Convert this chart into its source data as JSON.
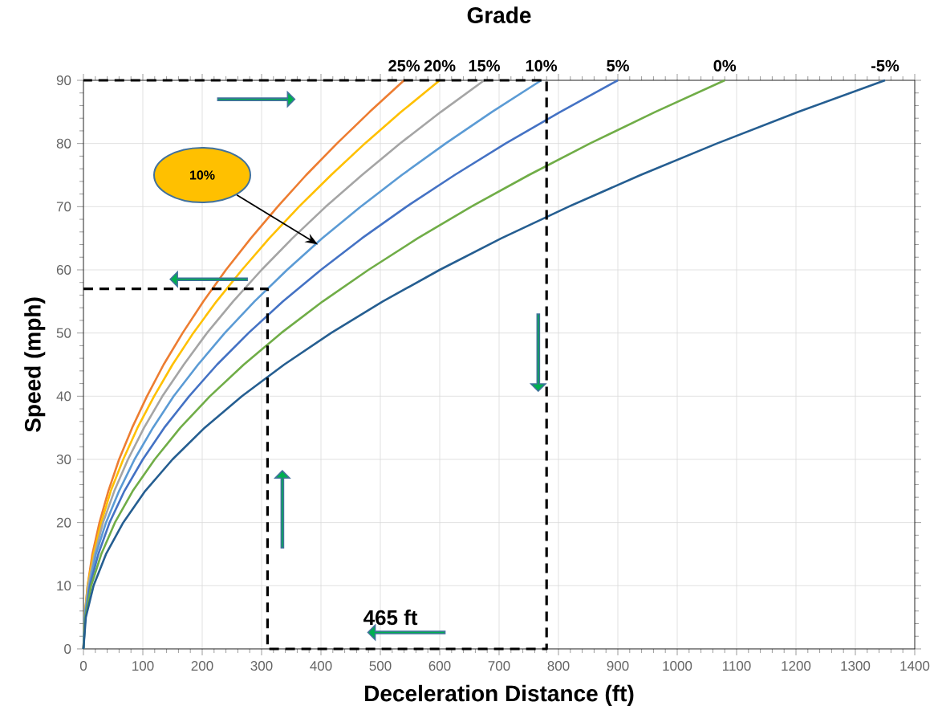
{
  "chart_data": {
    "type": "line",
    "title": "Grade",
    "xlabel": "Deceleration Distance (ft)",
    "ylabel": "Speed (mph)",
    "xlim": [
      0,
      1400
    ],
    "ylim": [
      0,
      90
    ],
    "xticks": [
      0,
      100,
      200,
      300,
      400,
      500,
      600,
      700,
      800,
      900,
      1000,
      1100,
      1200,
      1300,
      1400
    ],
    "yticks": [
      0,
      10,
      20,
      30,
      40,
      50,
      60,
      70,
      80,
      90
    ],
    "grid": true,
    "legend": false,
    "series": [
      {
        "name": "25%",
        "color": "#ed7d31",
        "x": [
          0,
          2,
          7,
          15,
          27,
          42,
          60,
          82,
          107,
          135,
          167,
          202,
          240,
          282,
          327,
          375,
          427,
          482,
          540
        ],
        "values": [
          0,
          5,
          10,
          15,
          20,
          25,
          30,
          35,
          40,
          45,
          50,
          55,
          60,
          65,
          70,
          75,
          80,
          85,
          90
        ]
      },
      {
        "name": "20%",
        "color": "#ffc000",
        "x": [
          0,
          2,
          7,
          17,
          30,
          46,
          67,
          91,
          119,
          150,
          185,
          224,
          267,
          313,
          363,
          417,
          474,
          535,
          600
        ],
        "values": [
          0,
          5,
          10,
          15,
          20,
          25,
          30,
          35,
          40,
          45,
          50,
          55,
          60,
          65,
          70,
          75,
          80,
          85,
          90
        ]
      },
      {
        "name": "15%",
        "color": "#a5a5a5",
        "x": [
          0,
          2,
          8,
          19,
          33,
          52,
          75,
          102,
          133,
          169,
          208,
          252,
          300,
          352,
          408,
          469,
          533,
          602,
          675
        ],
        "values": [
          0,
          5,
          10,
          15,
          20,
          25,
          30,
          35,
          40,
          45,
          50,
          55,
          60,
          65,
          70,
          75,
          80,
          85,
          90
        ]
      },
      {
        "name": "10%",
        "color": "#5b9bd5",
        "x": [
          0,
          2,
          10,
          21,
          38,
          60,
          86,
          117,
          152,
          193,
          238,
          288,
          343,
          402,
          467,
          536,
          610,
          688,
          771
        ],
        "values": [
          0,
          5,
          10,
          15,
          20,
          25,
          30,
          35,
          40,
          45,
          50,
          55,
          60,
          65,
          70,
          75,
          80,
          85,
          90
        ]
      },
      {
        "name": "5%",
        "color": "#4472c4",
        "x": [
          0,
          3,
          11,
          25,
          44,
          69,
          100,
          136,
          178,
          225,
          278,
          336,
          400,
          469,
          544,
          625,
          711,
          803,
          900
        ],
        "values": [
          0,
          5,
          10,
          15,
          20,
          25,
          30,
          35,
          40,
          45,
          50,
          55,
          60,
          65,
          70,
          75,
          80,
          85,
          90
        ]
      },
      {
        "name": "0%",
        "color": "#70ad47",
        "x": [
          0,
          3,
          13,
          30,
          53,
          83,
          120,
          163,
          213,
          270,
          333,
          403,
          480,
          563,
          653,
          750,
          853,
          963,
          1080
        ],
        "values": [
          0,
          5,
          10,
          15,
          20,
          25,
          30,
          35,
          40,
          45,
          50,
          55,
          60,
          65,
          70,
          75,
          80,
          85,
          90
        ]
      },
      {
        "name": "-5%",
        "color": "#255e91",
        "x": [
          0,
          4,
          17,
          38,
          67,
          104,
          150,
          204,
          267,
          338,
          417,
          504,
          600,
          704,
          817,
          938,
          1067,
          1204,
          1350
        ],
        "values": [
          0,
          5,
          10,
          15,
          20,
          25,
          30,
          35,
          40,
          45,
          50,
          55,
          60,
          65,
          70,
          75,
          80,
          85,
          90
        ]
      },
      {
        "type": "line",
        "line_style": "dashed",
        "color": "#000000",
        "x": [
          0,
          310,
          310,
          780,
          780,
          0
        ],
        "values": [
          57,
          57,
          0,
          0,
          90,
          90
        ]
      }
    ],
    "annotations": [
      "10%",
      "465 ft"
    ]
  }
}
